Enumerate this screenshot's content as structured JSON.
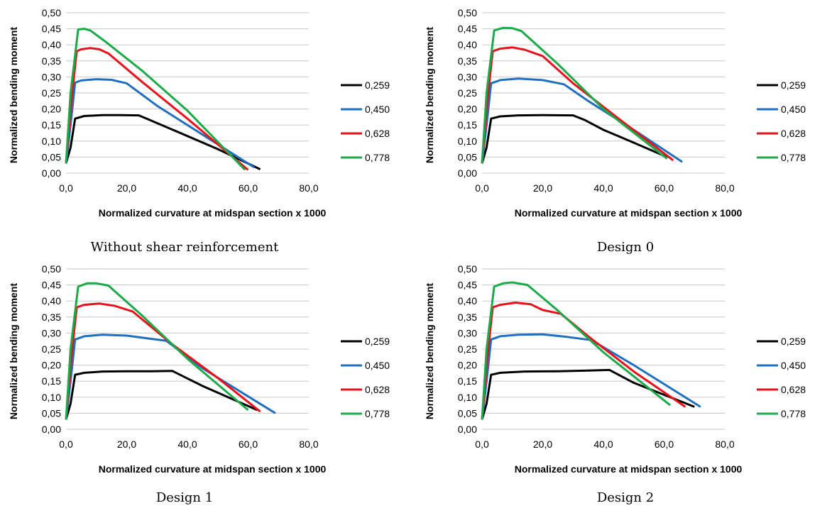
{
  "colors": {
    "0,259": "#000000",
    "0,450": "#1f6fc0",
    "0,628": "#e8111b",
    "0,778": "#1aaa48",
    "grid": "#c8c8c8"
  },
  "chart_data": [
    {
      "type": "line",
      "caption": "Without shear reinforcement",
      "xlabel": "Normalized curvature at midspan section x 1000",
      "ylabel": "Normalized bending moment",
      "xlim": [
        0,
        80
      ],
      "ylim": [
        0,
        0.5
      ],
      "xticks": [
        "0,0",
        "20,0",
        "40,0",
        "60,0",
        "80,0"
      ],
      "yticks": [
        "0,00",
        "0,05",
        "0,10",
        "0,15",
        "0,20",
        "0,25",
        "0,30",
        "0,35",
        "0,40",
        "0,45",
        "0,50"
      ],
      "grid": "horizontal",
      "legend": "right",
      "series": [
        {
          "name": "0,259",
          "points": [
            [
              0,
              0.03
            ],
            [
              1.5,
              0.08
            ],
            [
              3,
              0.17
            ],
            [
              6,
              0.178
            ],
            [
              12,
              0.181
            ],
            [
              18,
              0.181
            ],
            [
              24,
              0.18
            ],
            [
              26,
              0.172
            ],
            [
              34,
              0.14
            ],
            [
              50,
              0.075
            ],
            [
              64,
              0.012
            ]
          ]
        },
        {
          "name": "0,450",
          "points": [
            [
              0,
              0.03
            ],
            [
              1.5,
              0.15
            ],
            [
              3,
              0.282
            ],
            [
              5,
              0.289
            ],
            [
              10,
              0.293
            ],
            [
              15,
              0.291
            ],
            [
              20,
              0.28
            ],
            [
              30,
              0.21
            ],
            [
              45,
              0.12
            ],
            [
              62,
              0.018
            ]
          ]
        },
        {
          "name": "0,628",
          "points": [
            [
              0,
              0.03
            ],
            [
              1.5,
              0.2
            ],
            [
              3.5,
              0.38
            ],
            [
              5,
              0.386
            ],
            [
              8,
              0.39
            ],
            [
              11,
              0.386
            ],
            [
              14,
              0.373
            ],
            [
              25,
              0.285
            ],
            [
              40,
              0.17
            ],
            [
              60,
              0.01
            ]
          ]
        },
        {
          "name": "0,778",
          "points": [
            [
              0,
              0.03
            ],
            [
              1.5,
              0.25
            ],
            [
              4,
              0.448
            ],
            [
              6,
              0.45
            ],
            [
              8,
              0.445
            ],
            [
              13,
              0.41
            ],
            [
              25,
              0.32
            ],
            [
              40,
              0.195
            ],
            [
              59,
              0.01
            ]
          ]
        }
      ]
    },
    {
      "type": "line",
      "caption": "Design 0",
      "xlabel": "Normalized curvature at midspan section x 1000",
      "ylabel": "Normalized bending moment",
      "xlim": [
        0,
        80
      ],
      "ylim": [
        0,
        0.5
      ],
      "xticks": [
        "0,0",
        "20,0",
        "40,0",
        "60,0",
        "80,0"
      ],
      "yticks": [
        "0,00",
        "0,05",
        "0,10",
        "0,15",
        "0,20",
        "0,25",
        "0,30",
        "0,35",
        "0,40",
        "0,45",
        "0,50"
      ],
      "grid": "horizontal",
      "legend": "right",
      "series": [
        {
          "name": "0,259",
          "points": [
            [
              0,
              0.03
            ],
            [
              1.5,
              0.08
            ],
            [
              3,
              0.17
            ],
            [
              6,
              0.177
            ],
            [
              12,
              0.18
            ],
            [
              20,
              0.181
            ],
            [
              30,
              0.18
            ],
            [
              34,
              0.165
            ],
            [
              40,
              0.135
            ],
            [
              50,
              0.095
            ],
            [
              61,
              0.05
            ]
          ]
        },
        {
          "name": "0,450",
          "points": [
            [
              0,
              0.03
            ],
            [
              1.5,
              0.15
            ],
            [
              3,
              0.28
            ],
            [
              6,
              0.29
            ],
            [
              12,
              0.295
            ],
            [
              20,
              0.29
            ],
            [
              27,
              0.277
            ],
            [
              35,
              0.225
            ],
            [
              50,
              0.135
            ],
            [
              66,
              0.035
            ]
          ]
        },
        {
          "name": "0,628",
          "points": [
            [
              0,
              0.03
            ],
            [
              1.5,
              0.2
            ],
            [
              3.5,
              0.38
            ],
            [
              6,
              0.388
            ],
            [
              10,
              0.392
            ],
            [
              14,
              0.385
            ],
            [
              20,
              0.365
            ],
            [
              30,
              0.28
            ],
            [
              45,
              0.17
            ],
            [
              63,
              0.04
            ]
          ]
        },
        {
          "name": "0,778",
          "points": [
            [
              0,
              0.03
            ],
            [
              1.5,
              0.25
            ],
            [
              4,
              0.445
            ],
            [
              7,
              0.453
            ],
            [
              10,
              0.452
            ],
            [
              13,
              0.443
            ],
            [
              25,
              0.34
            ],
            [
              40,
              0.2
            ],
            [
              61,
              0.045
            ]
          ]
        }
      ]
    },
    {
      "type": "line",
      "caption": "Design 1",
      "xlabel": "Normalized curvature at midspan section x 1000",
      "ylabel": "Normalized bending moment",
      "xlim": [
        0,
        80
      ],
      "ylim": [
        0,
        0.5
      ],
      "xticks": [
        "0,0",
        "20,0",
        "40,0",
        "60,0",
        "80,0"
      ],
      "yticks": [
        "0,00",
        "0,05",
        "0,10",
        "0,15",
        "0,20",
        "0,25",
        "0,30",
        "0,35",
        "0,40",
        "0,45",
        "0,50"
      ],
      "grid": "horizontal",
      "legend": "right",
      "series": [
        {
          "name": "0,259",
          "points": [
            [
              0,
              0.03
            ],
            [
              1.5,
              0.08
            ],
            [
              3,
              0.17
            ],
            [
              6,
              0.176
            ],
            [
              12,
              0.18
            ],
            [
              20,
              0.181
            ],
            [
              28,
              0.181
            ],
            [
              35,
              0.182
            ],
            [
              45,
              0.135
            ],
            [
              63,
              0.06
            ]
          ]
        },
        {
          "name": "0,450",
          "points": [
            [
              0,
              0.03
            ],
            [
              1.5,
              0.15
            ],
            [
              3,
              0.28
            ],
            [
              6,
              0.29
            ],
            [
              12,
              0.295
            ],
            [
              20,
              0.292
            ],
            [
              28,
              0.282
            ],
            [
              33,
              0.276
            ],
            [
              45,
              0.19
            ],
            [
              69,
              0.05
            ]
          ]
        },
        {
          "name": "0,628",
          "points": [
            [
              0,
              0.03
            ],
            [
              1.5,
              0.2
            ],
            [
              3.5,
              0.38
            ],
            [
              6,
              0.388
            ],
            [
              11,
              0.392
            ],
            [
              16,
              0.385
            ],
            [
              22,
              0.367
            ],
            [
              35,
              0.265
            ],
            [
              50,
              0.16
            ],
            [
              64,
              0.055
            ]
          ]
        },
        {
          "name": "0,778",
          "points": [
            [
              0,
              0.03
            ],
            [
              1.5,
              0.25
            ],
            [
              4,
              0.445
            ],
            [
              7,
              0.455
            ],
            [
              10,
              0.455
            ],
            [
              14,
              0.448
            ],
            [
              25,
              0.355
            ],
            [
              40,
              0.22
            ],
            [
              60,
              0.06
            ]
          ]
        }
      ]
    },
    {
      "type": "line",
      "caption": "Design 2",
      "xlabel": "Normalized curvature at midspan section x 1000",
      "ylabel": "Normalized bending moment",
      "xlim": [
        0,
        80
      ],
      "ylim": [
        0,
        0.5
      ],
      "xticks": [
        "0,0",
        "20,0",
        "40,0",
        "60,0",
        "80,0"
      ],
      "yticks": [
        "0,00",
        "0,05",
        "0,10",
        "0,15",
        "0,20",
        "0,25",
        "0,30",
        "0,35",
        "0,40",
        "0,45",
        "0,50"
      ],
      "grid": "horizontal",
      "legend": "right",
      "series": [
        {
          "name": "0,259",
          "points": [
            [
              0,
              0.03
            ],
            [
              1.5,
              0.08
            ],
            [
              3,
              0.17
            ],
            [
              6,
              0.176
            ],
            [
              14,
              0.18
            ],
            [
              25,
              0.181
            ],
            [
              35,
              0.183
            ],
            [
              42,
              0.185
            ],
            [
              50,
              0.145
            ],
            [
              70,
              0.07
            ]
          ]
        },
        {
          "name": "0,450",
          "points": [
            [
              0,
              0.03
            ],
            [
              1.5,
              0.15
            ],
            [
              3,
              0.28
            ],
            [
              6,
              0.29
            ],
            [
              12,
              0.295
            ],
            [
              20,
              0.296
            ],
            [
              28,
              0.288
            ],
            [
              36,
              0.278
            ],
            [
              50,
              0.2
            ],
            [
              72,
              0.07
            ]
          ]
        },
        {
          "name": "0,628",
          "points": [
            [
              0,
              0.03
            ],
            [
              1.5,
              0.2
            ],
            [
              3.5,
              0.38
            ],
            [
              6,
              0.388
            ],
            [
              11,
              0.395
            ],
            [
              16,
              0.39
            ],
            [
              20,
              0.372
            ],
            [
              26,
              0.36
            ],
            [
              35,
              0.29
            ],
            [
              50,
              0.18
            ],
            [
              67,
              0.07
            ]
          ]
        },
        {
          "name": "0,778",
          "points": [
            [
              0,
              0.03
            ],
            [
              1.5,
              0.25
            ],
            [
              4,
              0.445
            ],
            [
              7,
              0.455
            ],
            [
              10,
              0.458
            ],
            [
              15,
              0.45
            ],
            [
              25,
              0.37
            ],
            [
              40,
              0.24
            ],
            [
              62,
              0.075
            ]
          ]
        }
      ]
    }
  ]
}
